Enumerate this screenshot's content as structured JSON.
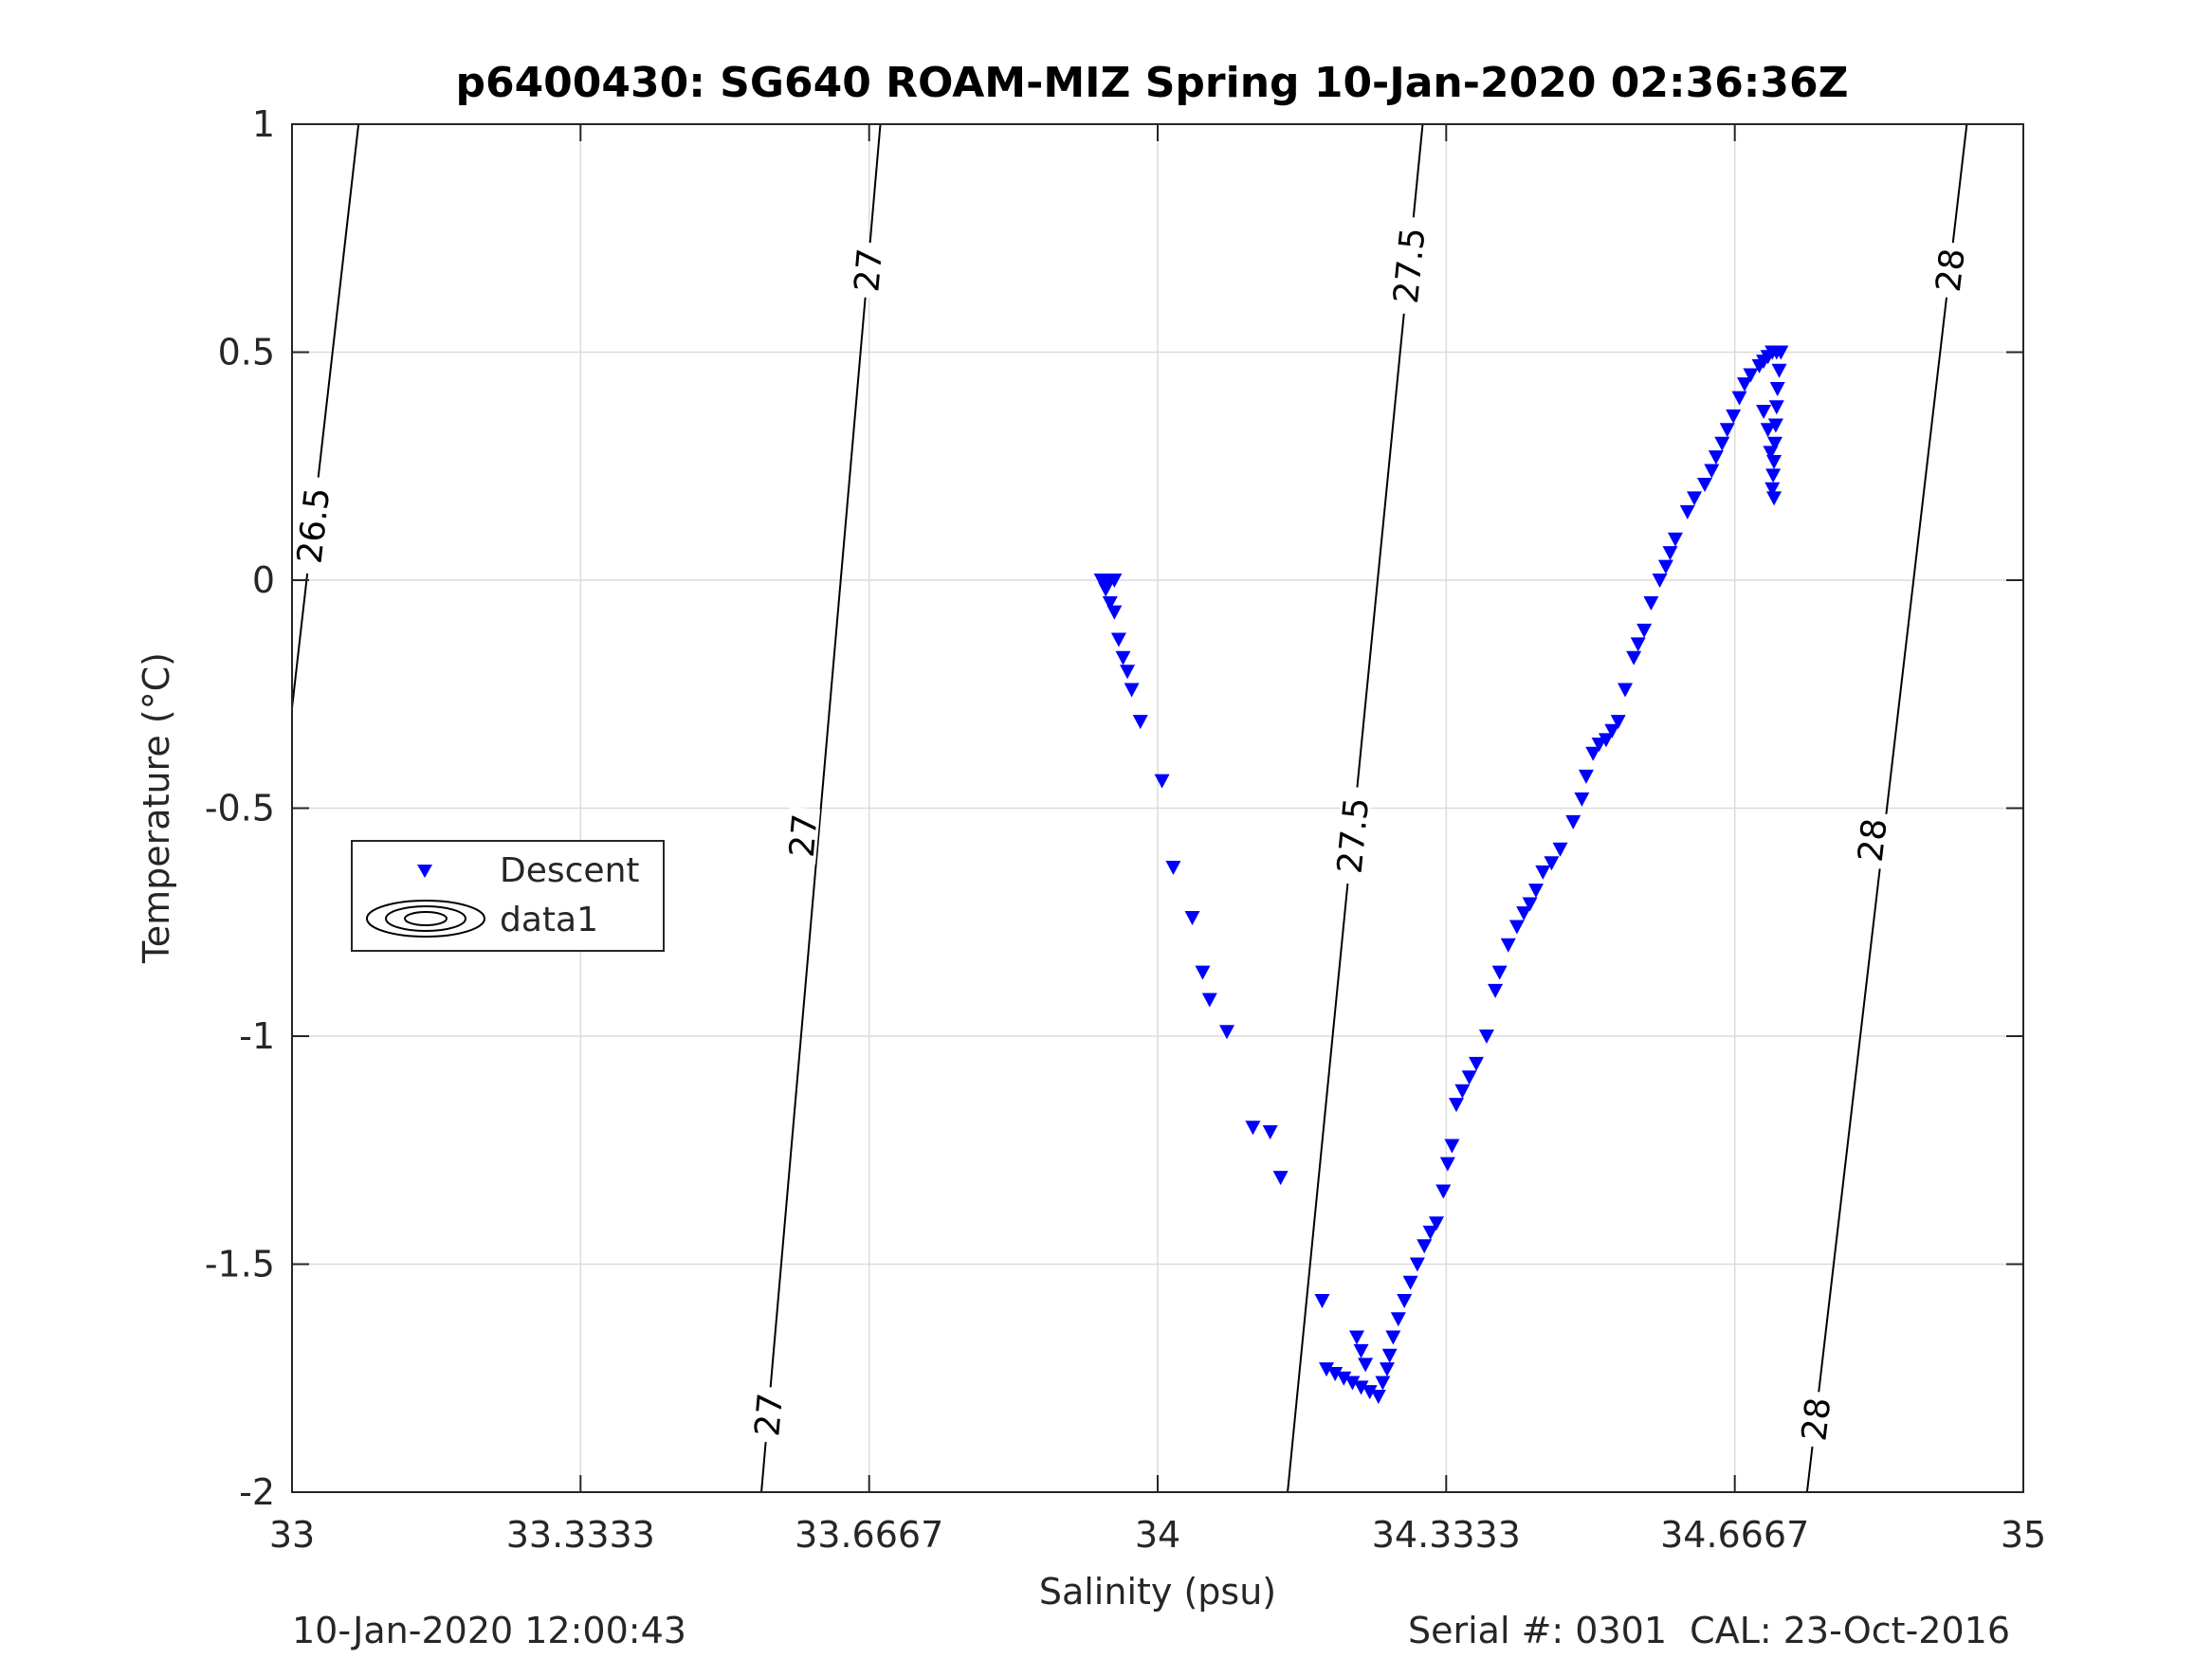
{
  "chart_data": {
    "type": "scatter",
    "title": "p6400430: SG640 ROAM-MIZ Spring 10-Jan-2020 02:36:36Z",
    "xlabel": "Salinity (psu)",
    "ylabel": "Temperature (°C)",
    "xlim": [
      33,
      35
    ],
    "ylim": [
      -2,
      1
    ],
    "xticks": [
      33,
      33.3333,
      33.6667,
      34,
      34.3333,
      34.6667,
      35
    ],
    "xtick_labels": [
      "33",
      "33.3333",
      "33.6667",
      "34",
      "34.3333",
      "34.6667",
      "35"
    ],
    "yticks": [
      -2,
      -1.5,
      -1,
      -0.5,
      0,
      0.5,
      1
    ],
    "ytick_labels": [
      "-2",
      "-1.5",
      "-1",
      "-0.5",
      "0",
      "0.5",
      "1"
    ],
    "grid": true,
    "legend": {
      "placement": "middle-left",
      "entries": [
        {
          "label": "Descent",
          "marker": "triangle-down",
          "color": "#0000ff"
        },
        {
          "label": "data1",
          "marker": "contour",
          "color": "#000000"
        }
      ]
    },
    "series": [
      {
        "name": "Descent",
        "color": "#0000ff",
        "marker": "triangle-down",
        "points": [
          [
            33.935,
            0.0
          ],
          [
            33.94,
            0.0
          ],
          [
            33.945,
            0.0
          ],
          [
            33.95,
            0.0
          ],
          [
            33.94,
            -0.02
          ],
          [
            33.945,
            -0.05
          ],
          [
            33.95,
            -0.07
          ],
          [
            33.955,
            -0.13
          ],
          [
            33.96,
            -0.17
          ],
          [
            33.965,
            -0.2
          ],
          [
            33.97,
            -0.24
          ],
          [
            33.98,
            -0.31
          ],
          [
            34.005,
            -0.44
          ],
          [
            34.018,
            -0.63
          ],
          [
            34.04,
            -0.74
          ],
          [
            34.052,
            -0.86
          ],
          [
            34.06,
            -0.92
          ],
          [
            34.08,
            -0.99
          ],
          [
            34.11,
            -1.2
          ],
          [
            34.13,
            -1.21
          ],
          [
            34.142,
            -1.31
          ],
          [
            34.19,
            -1.58
          ],
          [
            34.195,
            -1.73
          ],
          [
            34.205,
            -1.74
          ],
          [
            34.215,
            -1.75
          ],
          [
            34.225,
            -1.76
          ],
          [
            34.235,
            -1.77
          ],
          [
            34.245,
            -1.78
          ],
          [
            34.255,
            -1.79
          ],
          [
            34.23,
            -1.66
          ],
          [
            34.235,
            -1.69
          ],
          [
            34.24,
            -1.72
          ],
          [
            34.26,
            -1.76
          ],
          [
            34.265,
            -1.73
          ],
          [
            34.268,
            -1.7
          ],
          [
            34.272,
            -1.66
          ],
          [
            34.278,
            -1.62
          ],
          [
            34.285,
            -1.58
          ],
          [
            34.292,
            -1.54
          ],
          [
            34.3,
            -1.5
          ],
          [
            34.308,
            -1.46
          ],
          [
            34.315,
            -1.43
          ],
          [
            34.322,
            -1.41
          ],
          [
            34.33,
            -1.34
          ],
          [
            34.335,
            -1.28
          ],
          [
            34.34,
            -1.24
          ],
          [
            34.345,
            -1.15
          ],
          [
            34.352,
            -1.12
          ],
          [
            34.36,
            -1.09
          ],
          [
            34.368,
            -1.06
          ],
          [
            34.38,
            -1.0
          ],
          [
            34.39,
            -0.9
          ],
          [
            34.395,
            -0.86
          ],
          [
            34.405,
            -0.8
          ],
          [
            34.415,
            -0.76
          ],
          [
            34.423,
            -0.73
          ],
          [
            34.43,
            -0.71
          ],
          [
            34.437,
            -0.68
          ],
          [
            34.445,
            -0.64
          ],
          [
            34.455,
            -0.62
          ],
          [
            34.465,
            -0.59
          ],
          [
            34.48,
            -0.53
          ],
          [
            34.49,
            -0.48
          ],
          [
            34.495,
            -0.43
          ],
          [
            34.503,
            -0.38
          ],
          [
            34.51,
            -0.36
          ],
          [
            34.518,
            -0.35
          ],
          [
            34.525,
            -0.33
          ],
          [
            34.532,
            -0.31
          ],
          [
            34.54,
            -0.24
          ],
          [
            34.55,
            -0.17
          ],
          [
            34.555,
            -0.14
          ],
          [
            34.562,
            -0.11
          ],
          [
            34.57,
            -0.05
          ],
          [
            34.58,
            0.0
          ],
          [
            34.587,
            0.03
          ],
          [
            34.592,
            0.06
          ],
          [
            34.598,
            0.09
          ],
          [
            34.612,
            0.15
          ],
          [
            34.62,
            0.18
          ],
          [
            34.632,
            0.21
          ],
          [
            34.64,
            0.24
          ],
          [
            34.645,
            0.27
          ],
          [
            34.652,
            0.3
          ],
          [
            34.658,
            0.33
          ],
          [
            34.665,
            0.36
          ],
          [
            34.672,
            0.4
          ],
          [
            34.678,
            0.43
          ],
          [
            34.685,
            0.45
          ],
          [
            34.695,
            0.47
          ],
          [
            34.7,
            0.48
          ],
          [
            34.705,
            0.49
          ],
          [
            34.71,
            0.5
          ],
          [
            34.715,
            0.5
          ],
          [
            34.72,
            0.5
          ],
          [
            34.718,
            0.46
          ],
          [
            34.716,
            0.42
          ],
          [
            34.715,
            0.38
          ],
          [
            34.714,
            0.34
          ],
          [
            34.713,
            0.3
          ],
          [
            34.712,
            0.26
          ],
          [
            34.711,
            0.23
          ],
          [
            34.71,
            0.2
          ],
          [
            34.712,
            0.18
          ],
          [
            34.7,
            0.37
          ],
          [
            34.705,
            0.33
          ],
          [
            34.708,
            0.28
          ]
        ]
      }
    ],
    "isopycnals": [
      {
        "label": "26.5",
        "label_positions": [
          [
            33.024,
            0.12
          ]
        ]
      },
      {
        "label": "27",
        "label_positions": [
          [
            33.55,
            -1.83
          ],
          [
            33.59,
            -0.56
          ],
          [
            33.665,
            0.68
          ]
        ]
      },
      {
        "label": "27.5",
        "label_positions": [
          [
            34.225,
            -0.56
          ],
          [
            34.29,
            0.69
          ]
        ]
      },
      {
        "label": "28",
        "label_positions": [
          [
            34.76,
            -1.84
          ],
          [
            34.825,
            -0.57
          ],
          [
            34.915,
            0.68
          ]
        ]
      }
    ]
  },
  "footer": {
    "timestamp": "10-Jan-2020 12:00:43",
    "serial": "Serial #: 0301  CAL: 23-Oct-2016"
  }
}
